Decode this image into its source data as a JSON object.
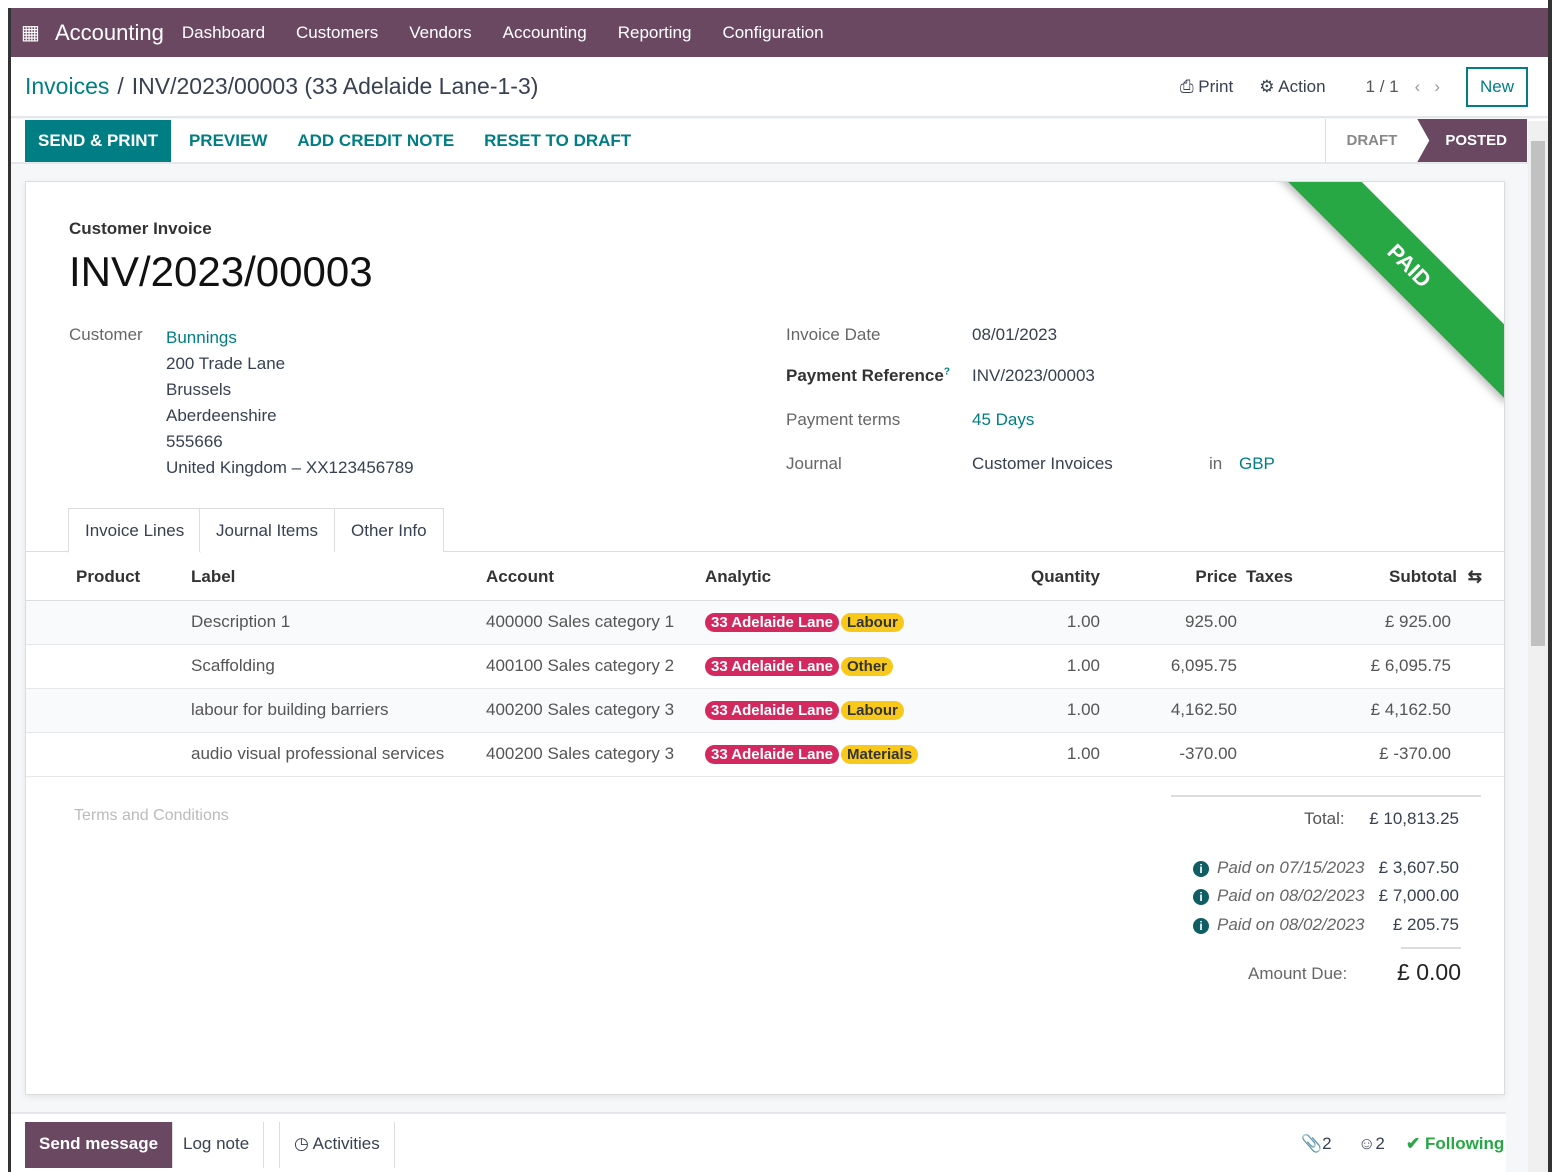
{
  "nav": {
    "app": "Accounting",
    "items": [
      "Dashboard",
      "Customers",
      "Vendors",
      "Accounting",
      "Reporting",
      "Configuration"
    ]
  },
  "breadcrumb": {
    "parent": "Invoices",
    "separator": "/",
    "current": "INV/2023/00003 (33 Adelaide Lane-1-3)"
  },
  "toolbar": {
    "print": "Print",
    "action": "Action",
    "pager": "1 / 1",
    "new": "New"
  },
  "buttons": {
    "send_print": "SEND & PRINT",
    "preview": "PREVIEW",
    "add_credit_note": "ADD CREDIT NOTE",
    "reset_to_draft": "RESET TO DRAFT"
  },
  "status": {
    "draft": "DRAFT",
    "posted": "POSTED",
    "ribbon": "PAID"
  },
  "invoice": {
    "type_label": "Customer Invoice",
    "number": "INV/2023/00003",
    "customer_label": "Customer",
    "customer": "Bunnings",
    "address": [
      "200 Trade Lane",
      "Brussels",
      "Aberdeenshire",
      "555666",
      "United Kingdom – XX123456789"
    ],
    "invoice_date_label": "Invoice Date",
    "invoice_date": "08/01/2023",
    "payment_reference_label": "Payment Reference",
    "payment_reference_help": "?",
    "payment_reference": "INV/2023/00003",
    "payment_terms_label": "Payment terms",
    "payment_terms": "45 Days",
    "journal_label": "Journal",
    "journal": "Customer Invoices",
    "in_label": "in",
    "currency": "GBP"
  },
  "tabs": [
    "Invoice Lines",
    "Journal Items",
    "Other Info"
  ],
  "lines": {
    "headers": [
      "Product",
      "Label",
      "Account",
      "Analytic",
      "Quantity",
      "Price",
      "Taxes",
      "Subtotal"
    ],
    "rows": [
      {
        "label": "Description 1",
        "account": "400000 Sales category 1",
        "tag1": "33 Adelaide Lane",
        "tag2": "Labour",
        "qty": "1.00",
        "price": "925.00",
        "subtotal": "£ 925.00"
      },
      {
        "label": "Scaffolding",
        "account": "400100 Sales category 2",
        "tag1": "33 Adelaide Lane",
        "tag2": "Other",
        "qty": "1.00",
        "price": "6,095.75",
        "subtotal": "£ 6,095.75"
      },
      {
        "label": "labour for building barriers",
        "account": "400200 Sales category 3",
        "tag1": "33 Adelaide Lane",
        "tag2": "Labour",
        "qty": "1.00",
        "price": "4,162.50",
        "subtotal": "£ 4,162.50"
      },
      {
        "label": "audio visual professional services",
        "account": "400200 Sales category 3",
        "tag1": "33 Adelaide Lane",
        "tag2": "Materials",
        "qty": "1.00",
        "price": "-370.00",
        "subtotal": "£ -370.00"
      }
    ]
  },
  "terms_placeholder": "Terms and Conditions",
  "totals": {
    "total_label": "Total:",
    "total": "£ 10,813.25",
    "payments": [
      {
        "label": "Paid on 07/15/2023",
        "amount": "£ 3,607.50"
      },
      {
        "label": "Paid on 08/02/2023",
        "amount": "£ 7,000.00"
      },
      {
        "label": "Paid on 08/02/2023",
        "amount": "£ 205.75"
      }
    ],
    "due_label": "Amount Due:",
    "due": "£ 0.00"
  },
  "chatter": {
    "send_message": "Send message",
    "log_note": "Log note",
    "activities": "Activities",
    "attachments": "2",
    "followers": "2",
    "following": "Following"
  },
  "colors": {
    "brand": "#6b4862",
    "accent": "#017e84",
    "paid": "#28a745",
    "tag_red": "#d3295f",
    "tag_yellow": "#f8c91a"
  }
}
